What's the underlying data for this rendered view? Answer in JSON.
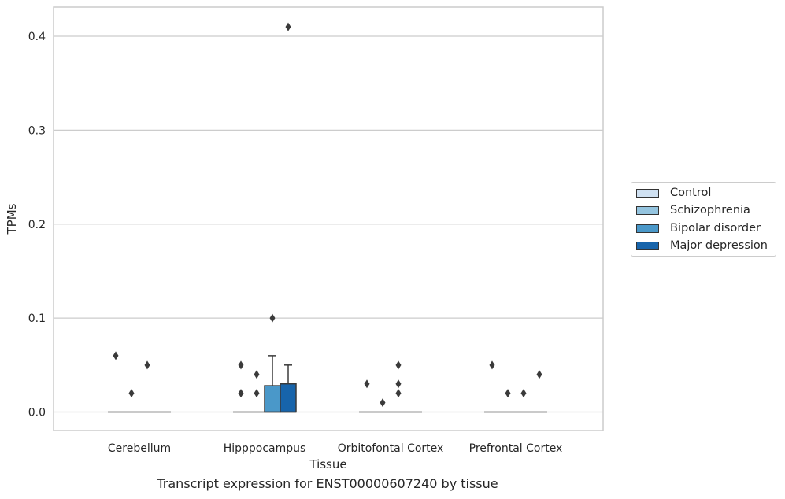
{
  "caption": "Transcript expression for ENST00000607240 by tissue",
  "chart_data": {
    "type": "box",
    "xlabel": "Tissue",
    "ylabel": "TPMs",
    "ylim": [
      -0.02,
      0.43
    ],
    "yticks": [
      0.0,
      0.1,
      0.2,
      0.3,
      0.4
    ],
    "ytick_labels": [
      "0.0",
      "0.1",
      "0.2",
      "0.3",
      "0.4"
    ],
    "grid": true,
    "legend_position": "right",
    "categories": [
      "Cerebellum",
      "Hipppocampus",
      "Orbitofontal Cortex",
      "Prefrontal Cortex"
    ],
    "series": [
      {
        "name": "Control",
        "color": "#d0e1f2",
        "boxes": [
          {
            "q1": 0,
            "median": 0,
            "q3": 0,
            "whisker_low": 0,
            "whisker_high": 0,
            "outliers": [
              0.06
            ]
          },
          {
            "q1": 0,
            "median": 0,
            "q3": 0,
            "whisker_low": 0,
            "whisker_high": 0,
            "outliers": [
              0.05,
              0.02
            ]
          },
          {
            "q1": 0,
            "median": 0,
            "q3": 0,
            "whisker_low": 0,
            "whisker_high": 0,
            "outliers": [
              0.03
            ]
          },
          {
            "q1": 0,
            "median": 0,
            "q3": 0,
            "whisker_low": 0,
            "whisker_high": 0,
            "outliers": [
              0.05
            ]
          }
        ]
      },
      {
        "name": "Schizophrenia",
        "color": "#94c4df",
        "boxes": [
          {
            "q1": 0,
            "median": 0,
            "q3": 0,
            "whisker_low": 0,
            "whisker_high": 0,
            "outliers": [
              0.02
            ]
          },
          {
            "q1": 0,
            "median": 0,
            "q3": 0,
            "whisker_low": 0,
            "whisker_high": 0,
            "outliers": [
              0.04,
              0.02
            ]
          },
          {
            "q1": 0,
            "median": 0,
            "q3": 0,
            "whisker_low": 0,
            "whisker_high": 0,
            "outliers": [
              0.01
            ]
          },
          {
            "q1": 0,
            "median": 0,
            "q3": 0,
            "whisker_low": 0,
            "whisker_high": 0,
            "outliers": [
              0.02
            ]
          }
        ]
      },
      {
        "name": "Bipolar disorder",
        "color": "#4a98c9",
        "boxes": [
          {
            "q1": 0,
            "median": 0,
            "q3": 0,
            "whisker_low": 0,
            "whisker_high": 0,
            "outliers": [
              0.05
            ]
          },
          {
            "q1": 0,
            "median": 0,
            "q3": 0.028,
            "whisker_low": 0,
            "whisker_high": 0.06,
            "outliers": [
              0.1
            ]
          },
          {
            "q1": 0,
            "median": 0,
            "q3": 0,
            "whisker_low": 0,
            "whisker_high": 0,
            "outliers": [
              0.05,
              0.03,
              0.02
            ]
          },
          {
            "q1": 0,
            "median": 0,
            "q3": 0,
            "whisker_low": 0,
            "whisker_high": 0,
            "outliers": [
              0.02
            ]
          }
        ]
      },
      {
        "name": "Major depression",
        "color": "#1764ab",
        "boxes": [
          {
            "q1": 0,
            "median": 0,
            "q3": 0,
            "whisker_low": 0,
            "whisker_high": 0,
            "outliers": []
          },
          {
            "q1": 0,
            "median": 0,
            "q3": 0.03,
            "whisker_low": 0,
            "whisker_high": 0.05,
            "outliers": [
              0.41
            ]
          },
          {
            "q1": 0,
            "median": 0,
            "q3": 0,
            "whisker_low": 0,
            "whisker_high": 0,
            "outliers": []
          },
          {
            "q1": 0,
            "median": 0,
            "q3": 0,
            "whisker_low": 0,
            "whisker_high": 0,
            "outliers": [
              0.04
            ]
          }
        ]
      }
    ]
  }
}
